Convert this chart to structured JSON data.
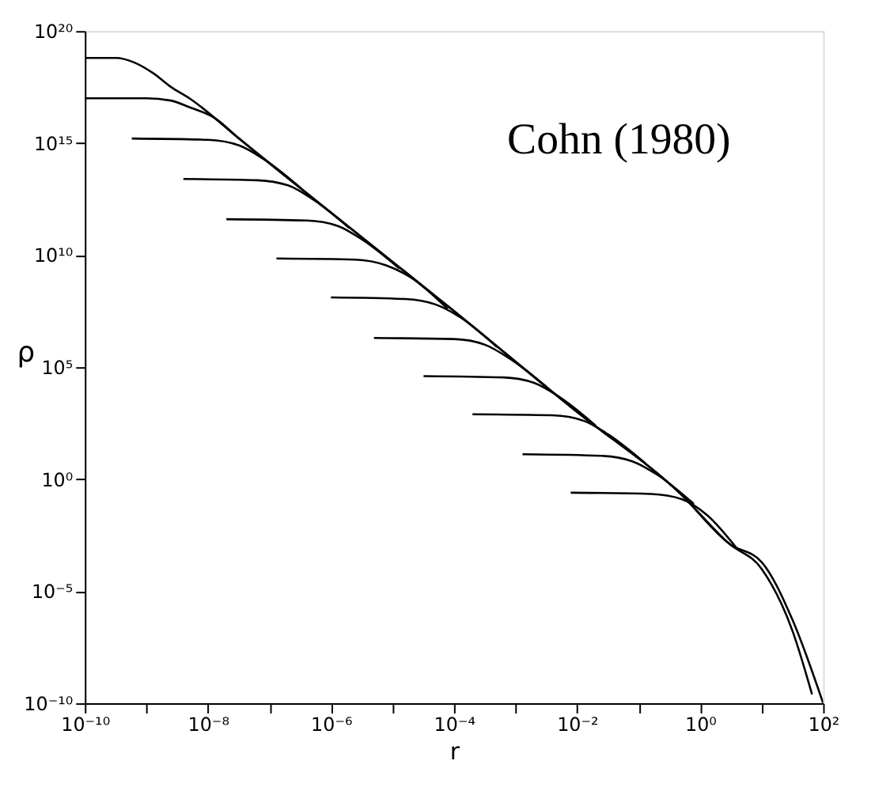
{
  "chart_data": {
    "type": "line",
    "xlabel": "r",
    "ylabel": "ρ",
    "log": "xy",
    "grid": false,
    "legend": false,
    "marker": "none",
    "line_style": "solid",
    "annotations": [
      "Cohn (1980)"
    ],
    "xlim": [
      1e-10,
      100
    ],
    "ylim": [
      1e-10,
      1e+20
    ],
    "xticks": [
      {
        "value": 1e-10,
        "label": "10⁻¹⁰"
      },
      {
        "value": 1e-09,
        "label": null
      },
      {
        "value": 1e-08,
        "label": "10⁻⁸"
      },
      {
        "value": 1e-07,
        "label": null
      },
      {
        "value": 1e-06,
        "label": "10⁻⁶"
      },
      {
        "value": 1e-05,
        "label": null
      },
      {
        "value": 0.0001,
        "label": "10⁻⁴"
      },
      {
        "value": 0.001,
        "label": null
      },
      {
        "value": 0.01,
        "label": "10⁻²"
      },
      {
        "value": 0.1,
        "label": null
      },
      {
        "value": 1,
        "label": "10⁰"
      },
      {
        "value": 10,
        "label": null
      },
      {
        "value": 100,
        "label": "10²"
      }
    ],
    "yticks": [
      {
        "value": 1e-10,
        "label": "10⁻¹⁰"
      },
      {
        "value": 1e-05,
        "label": "10⁻⁵"
      },
      {
        "value": 1,
        "label": "10⁰"
      },
      {
        "value": 100000.0,
        "label": "10⁵"
      },
      {
        "value": 10000000000.0,
        "label": "10¹⁰"
      },
      {
        "value": 1000000000000000.0,
        "label": "10¹⁵"
      },
      {
        "value": 1e+20,
        "label": "10²⁰"
      }
    ],
    "series": [
      {
        "color": "#000000",
        "x": [
          1e-10,
          3.2e-10,
          6.3e-10,
          1.3e-09,
          2.5e-09,
          5e-09,
          3.2e-08,
          1e-06,
          0.0001,
          0.01,
          0.46,
          3.0,
          10,
          32,
          66
        ],
        "values": [
          6.3e+18,
          6.3e+18,
          4e+18,
          1.3e+18,
          3.2e+17,
          1e+17,
          1600000000000000.0,
          790000000000.0,
          32000000.0,
          1000,
          0.25,
          0.0013,
          0.0001,
          1.6e-07,
          2.5e-10
        ]
      },
      {
        "color": "#000000",
        "x": [
          1e-10,
          1e-09,
          2.5e-09,
          5e-09,
          1.3e-08,
          3.2e-08,
          1e-06,
          0.0001,
          0.01,
          0.46,
          3.0,
          10,
          32,
          100
        ],
        "values": [
          1e+17,
          1e+17,
          7.9e+16,
          4e+16,
          1.3e+16,
          1600000000000000.0,
          790000000000.0,
          32000000.0,
          1000,
          0.25,
          0.0013,
          0.0002,
          5e-07,
          1e-10
        ]
      },
      {
        "color": "#000000",
        "x": [
          5.8e-10,
          1e-08,
          3.2e-08,
          7.9e-08,
          3.2e-07
        ],
        "values": [
          1600000000000000.0,
          1400000000000000.0,
          790000000000000.0,
          200000000000000.0,
          10000000000000.0
        ]
      },
      {
        "color": "#000000",
        "x": [
          4e-09,
          6.3e-08,
          2e-07,
          5e-07,
          2e-06
        ],
        "values": [
          25000000000000.0,
          22000000000000.0,
          13000000000000.0,
          3200000000000.0,
          160000000000.0
        ]
      },
      {
        "color": "#000000",
        "x": [
          2e-08,
          4e-07,
          1.3e-06,
          3.2e-06,
          1.3e-05
        ],
        "values": [
          400000000000.0,
          350000000000.0,
          200000000000.0,
          50000000000.0,
          2500000000.0
        ]
      },
      {
        "color": "#000000",
        "x": [
          1.3e-07,
          2.5e-06,
          7.9e-06,
          2e-05,
          7.9e-05
        ],
        "values": [
          7100000000.0,
          6300000000.0,
          3500000000.0,
          1000000000.0,
          40000000.0
        ]
      },
      {
        "color": "#000000",
        "x": [
          1e-06,
          1.6e-05,
          5e-05,
          0.00013,
          0.0005
        ],
        "values": [
          130000000.0,
          110000000.0,
          63000000.0,
          16000000.0,
          790000.0
        ]
      },
      {
        "color": "#000000",
        "x": [
          5e-06,
          0.0001,
          0.00032,
          0.00079,
          0.0032
        ],
        "values": [
          2000000.0,
          1800000.0,
          1000000.0,
          250000.0,
          13000.0
        ]
      },
      {
        "color": "#000000",
        "x": [
          3.2e-05,
          0.00063,
          0.002,
          0.005,
          0.02
        ],
        "values": [
          40000.0,
          35000.0,
          20000.0,
          5000,
          250
        ]
      },
      {
        "color": "#000000",
        "x": [
          0.0002,
          0.004,
          0.013,
          0.032,
          0.13
        ],
        "values": [
          790,
          710,
          400,
          100,
          5
        ]
      },
      {
        "color": "#000000",
        "x": [
          0.0013,
          0.025,
          0.079,
          0.2,
          0.79
        ],
        "values": [
          13,
          11,
          6.3,
          1.6,
          0.079
        ]
      },
      {
        "color": "#000000",
        "x": [
          0.0079,
          0.16,
          0.5,
          1.3,
          4
        ],
        "values": [
          0.25,
          0.22,
          0.13,
          0.025,
          0.00079
        ]
      }
    ]
  }
}
